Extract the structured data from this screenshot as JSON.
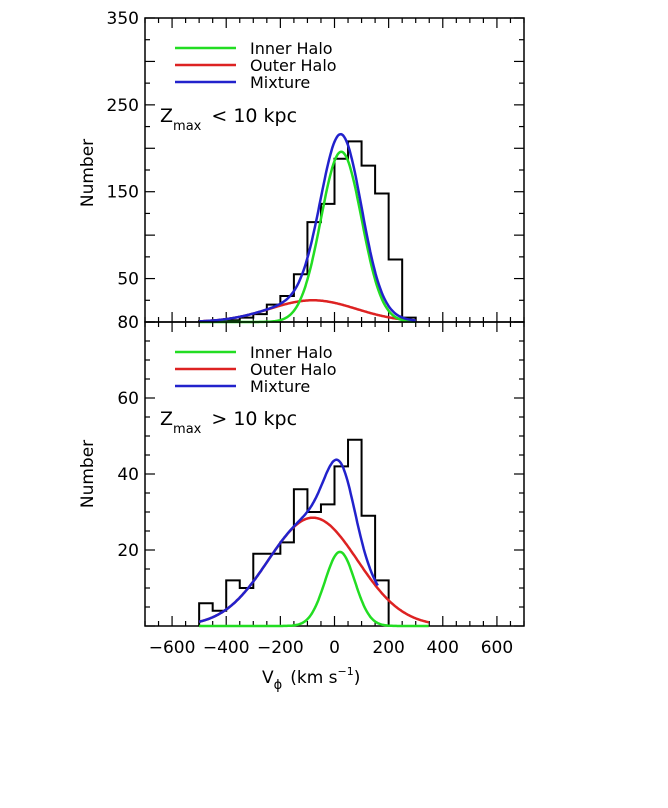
{
  "chart_data": [
    {
      "type": "line",
      "panel": "top",
      "title": "",
      "annotation": {
        "var": "Z",
        "sub": "max",
        "rest": "< 10 kpc"
      },
      "xlabel": "",
      "ylabel": "Number",
      "xlim": [
        -700,
        700
      ],
      "ylim": [
        0,
        350
      ],
      "yticks": [
        {
          "value": 350,
          "label": "350"
        },
        {
          "value": 250,
          "label": "250"
        },
        {
          "value": 150,
          "label": "150"
        },
        {
          "value": 50,
          "label": "50"
        }
      ],
      "xticks": [
        -600,
        -400,
        -200,
        0,
        200,
        400,
        600
      ],
      "legend": [
        {
          "name": "Inner Halo",
          "color": "#22dd22"
        },
        {
          "name": "Outer Halo",
          "color": "#dd2222"
        },
        {
          "name": "Mixture",
          "color": "#2222cc"
        }
      ],
      "histogram": {
        "color": "#000000",
        "bin_edges": [
          -500,
          -450,
          -400,
          -350,
          -300,
          -250,
          -200,
          -150,
          -100,
          -50,
          0,
          50,
          100,
          150,
          200,
          250,
          300
        ],
        "counts": [
          1,
          2,
          2,
          5,
          9,
          20,
          30,
          55,
          115,
          136,
          188,
          208,
          180,
          148,
          72,
          5
        ]
      },
      "series": [
        {
          "name": "Inner Halo",
          "color": "#22dd22",
          "amplitude": 196,
          "mean": 25,
          "sigma": 75,
          "x_range": [
            -500,
            300
          ]
        },
        {
          "name": "Outer Halo",
          "color": "#dd2222",
          "amplitude": 25,
          "mean": -80,
          "sigma": 160,
          "x_range": [
            -500,
            300
          ]
        },
        {
          "name": "Mixture",
          "color": "#2222cc",
          "x_range": [
            -500,
            300
          ]
        }
      ]
    },
    {
      "type": "line",
      "panel": "bottom",
      "title": "",
      "annotation": {
        "var": "Z",
        "sub": "max",
        "rest": "> 10 kpc"
      },
      "xlabel": "V_phi (km s^-1)",
      "ylabel": "Number",
      "xlim": [
        -700,
        700
      ],
      "ylim": [
        0,
        80
      ],
      "yticks": [
        {
          "value": 80,
          "label": "80"
        },
        {
          "value": 60,
          "label": "60"
        },
        {
          "value": 40,
          "label": "40"
        },
        {
          "value": 20,
          "label": "20"
        }
      ],
      "xticks": [
        -600,
        -400,
        -200,
        0,
        200,
        400,
        600
      ],
      "xtick_labels": [
        "−600",
        "−400",
        "−200",
        "0",
        "200",
        "400",
        "600"
      ],
      "legend": [
        {
          "name": "Inner Halo",
          "color": "#22dd22"
        },
        {
          "name": "Outer Halo",
          "color": "#dd2222"
        },
        {
          "name": "Mixture",
          "color": "#2222cc"
        }
      ],
      "histogram": {
        "color": "#000000",
        "bin_edges": [
          -500,
          -450,
          -400,
          -350,
          -300,
          -250,
          -200,
          -150,
          -100,
          -50,
          0,
          50,
          100,
          150,
          200
        ],
        "counts": [
          6,
          4,
          12,
          10,
          19,
          19,
          22,
          36,
          30,
          32,
          42,
          49,
          29,
          12
        ]
      },
      "series": [
        {
          "name": "Inner Halo",
          "color": "#22dd22",
          "amplitude": 19.5,
          "mean": 20,
          "sigma": 55,
          "x_range": [
            -500,
            350
          ]
        },
        {
          "name": "Outer Halo",
          "color": "#dd2222",
          "amplitude": 28.5,
          "mean": -80,
          "sigma": 165,
          "x_range": [
            -500,
            350
          ]
        },
        {
          "name": "Mixture",
          "color": "#2222cc",
          "x_range": [
            -500,
            160
          ]
        }
      ]
    }
  ],
  "x_axis_title": {
    "var": "V",
    "sub": "ϕ",
    "units": "(km s",
    "exp": "−1",
    "close": ")"
  }
}
